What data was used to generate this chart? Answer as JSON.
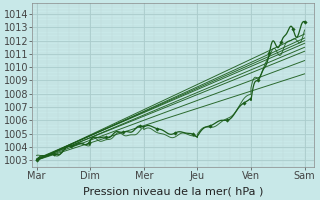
{
  "title": "",
  "xlabel": "Pression niveau de la mer( hPa )",
  "bg_color": "#c8e8e8",
  "grid_major_color": "#aacccc",
  "grid_minor_color": "#bcd8d8",
  "line_color": "#1a5c1a",
  "ylim": [
    1002.5,
    1014.8
  ],
  "yticks": [
    1003,
    1004,
    1005,
    1006,
    1007,
    1008,
    1009,
    1010,
    1011,
    1012,
    1013,
    1014
  ],
  "day_labels": [
    "Mar",
    "Dim",
    "Mer",
    "Jeu",
    "Ven",
    "Sam"
  ],
  "day_positions": [
    0,
    1,
    2,
    3,
    4,
    5
  ],
  "font_size": 7,
  "xlabel_fontsize": 8,
  "straight_starts": [
    1003.0,
    1003.0,
    1003.05,
    1003.1,
    1003.0,
    1003.05,
    1003.0,
    1003.0
  ],
  "straight_ends": [
    1012.5,
    1012.2,
    1012.0,
    1011.8,
    1011.5,
    1011.2,
    1010.5,
    1009.5
  ]
}
